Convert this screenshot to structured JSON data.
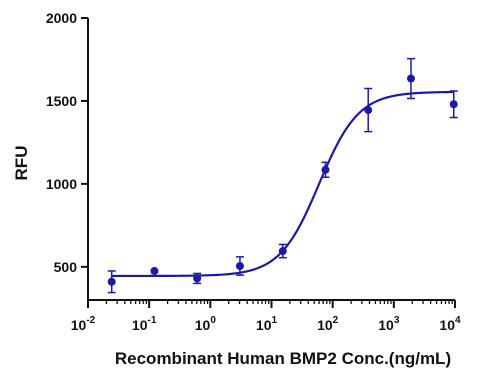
{
  "chart_data": {
    "type": "scatter",
    "title": "",
    "xlabel": "Recombinant Human BMP2 Conc.(ng/mL)",
    "ylabel": "RFU",
    "x_scale": "log10",
    "xlim": [
      0.01,
      10000
    ],
    "ylim": [
      300,
      2000
    ],
    "x_ticks": [
      0.01,
      0.1,
      1,
      10,
      100,
      1000,
      10000
    ],
    "x_tick_labels": [
      {
        "base": "10",
        "exp": "-2"
      },
      {
        "base": "10",
        "exp": "-1"
      },
      {
        "base": "10",
        "exp": "0"
      },
      {
        "base": "10",
        "exp": "1"
      },
      {
        "base": "10",
        "exp": "2"
      },
      {
        "base": "10",
        "exp": "3"
      },
      {
        "base": "10",
        "exp": "4"
      }
    ],
    "y_ticks": [
      500,
      1000,
      1500,
      2000
    ],
    "y_tick_labels": [
      "500",
      "1000",
      "1500",
      "2000"
    ],
    "grid": false,
    "color": "#1a1aaa",
    "series": [
      {
        "points": [
          {
            "x": 0.0244,
            "y": 410,
            "err": 65
          },
          {
            "x": 0.122,
            "y": 475,
            "err": 0
          },
          {
            "x": 0.61,
            "y": 430,
            "err": 30
          },
          {
            "x": 3.05,
            "y": 505,
            "err": 55
          },
          {
            "x": 15.3,
            "y": 595,
            "err": 40
          },
          {
            "x": 76.3,
            "y": 1085,
            "err": 45
          },
          {
            "x": 381,
            "y": 1445,
            "err": 130
          },
          {
            "x": 1907,
            "y": 1635,
            "err": 120
          },
          {
            "x": 9537,
            "y": 1480,
            "err": 80
          }
        ],
        "fit": {
          "model": "4PL",
          "bottom": 445,
          "top": 1555,
          "ec50": 60,
          "hill": 1.35
        }
      }
    ]
  }
}
